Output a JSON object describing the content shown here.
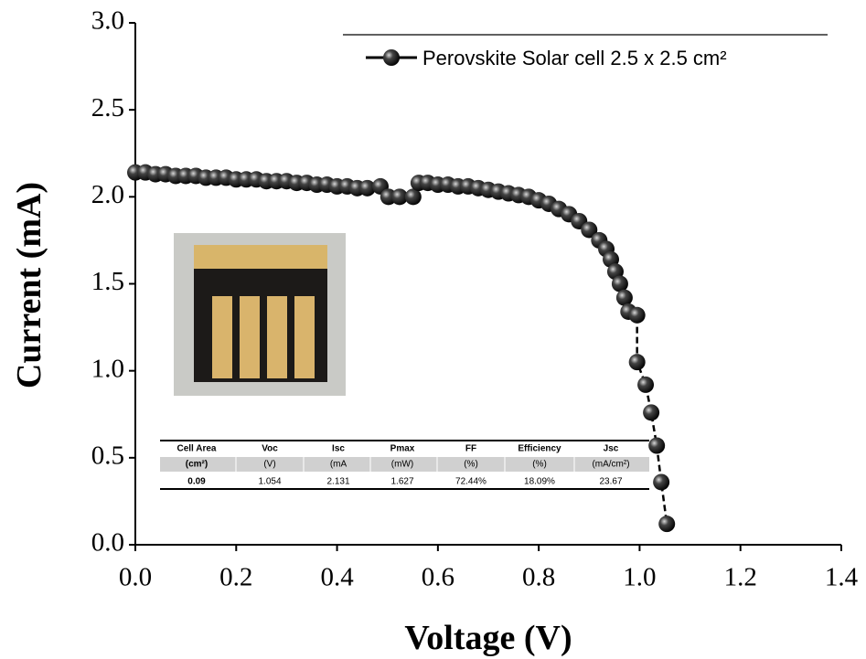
{
  "chart_data": {
    "type": "line",
    "xlabel": "Voltage (V)",
    "ylabel": "Current (mA)",
    "xlim": [
      0,
      1.4
    ],
    "ylim": [
      0,
      3.0
    ],
    "xticks": [
      {
        "value": 0,
        "label": "0.0"
      },
      {
        "value": 0.2,
        "label": "0.2"
      },
      {
        "value": 0.4,
        "label": "0.4"
      },
      {
        "value": 0.6,
        "label": "0.6"
      },
      {
        "value": 0.8,
        "label": "0.8"
      },
      {
        "value": 1.0,
        "label": "1.0"
      },
      {
        "value": 1.2,
        "label": "1.2"
      },
      {
        "value": 1.4,
        "label": "1.4"
      }
    ],
    "yticks": [
      {
        "value": 0,
        "label": "0.0"
      },
      0.5,
      {
        "value": 1.0,
        "label": "1.0"
      },
      1.5,
      {
        "value": 2.0,
        "label": "2.0"
      },
      2.5,
      {
        "value": 3.0,
        "label": "3.0"
      }
    ],
    "series": [
      {
        "name": "Perovskite Solar cell 2.5 x 2.5 cm²",
        "color": "#000000",
        "x": [
          0,
          0.02,
          0.04,
          0.06,
          0.08,
          0.1,
          0.12,
          0.14,
          0.16,
          0.18,
          0.2,
          0.22,
          0.24,
          0.26,
          0.28,
          0.3,
          0.32,
          0.34,
          0.36,
          0.38,
          0.4,
          0.42,
          0.44,
          0.46,
          0.486,
          0.502,
          0.524,
          0.551,
          0.562,
          0.58,
          0.6,
          0.62,
          0.64,
          0.66,
          0.68,
          0.7,
          0.72,
          0.74,
          0.76,
          0.78,
          0.8,
          0.82,
          0.84,
          0.86,
          0.88,
          0.9,
          0.92,
          0.934,
          0.943,
          0.952,
          0.961,
          0.97,
          0.978,
          0.995,
          0.995,
          1.012,
          1.023,
          1.034,
          1.043,
          1.054
        ],
        "values": [
          2.14,
          2.14,
          2.13,
          2.13,
          2.12,
          2.12,
          2.12,
          2.11,
          2.11,
          2.11,
          2.1,
          2.1,
          2.1,
          2.09,
          2.09,
          2.09,
          2.08,
          2.08,
          2.07,
          2.07,
          2.06,
          2.06,
          2.05,
          2.05,
          2.06,
          2.0,
          2.0,
          2.0,
          2.08,
          2.08,
          2.07,
          2.07,
          2.06,
          2.06,
          2.05,
          2.04,
          2.03,
          2.02,
          2.01,
          2.0,
          1.98,
          1.96,
          1.93,
          1.9,
          1.86,
          1.81,
          1.75,
          1.7,
          1.64,
          1.57,
          1.5,
          1.42,
          1.34,
          1.32,
          1.05,
          0.92,
          0.76,
          0.57,
          0.36,
          0.12
        ]
      }
    ],
    "table": {
      "columns": [
        "Cell Area",
        "Voc",
        "Isc",
        "Pmax",
        "FF",
        "Efficiency",
        "Jsc"
      ],
      "units": [
        "(cm²)",
        "(V)",
        "(mA",
        "(mW)",
        "(%)",
        "(%)",
        "(mA/cm²)"
      ],
      "rows": [
        [
          "0.09",
          "1.054",
          "2.131",
          "1.627",
          "72.44%",
          "18.09%",
          "23.67"
        ]
      ]
    }
  }
}
